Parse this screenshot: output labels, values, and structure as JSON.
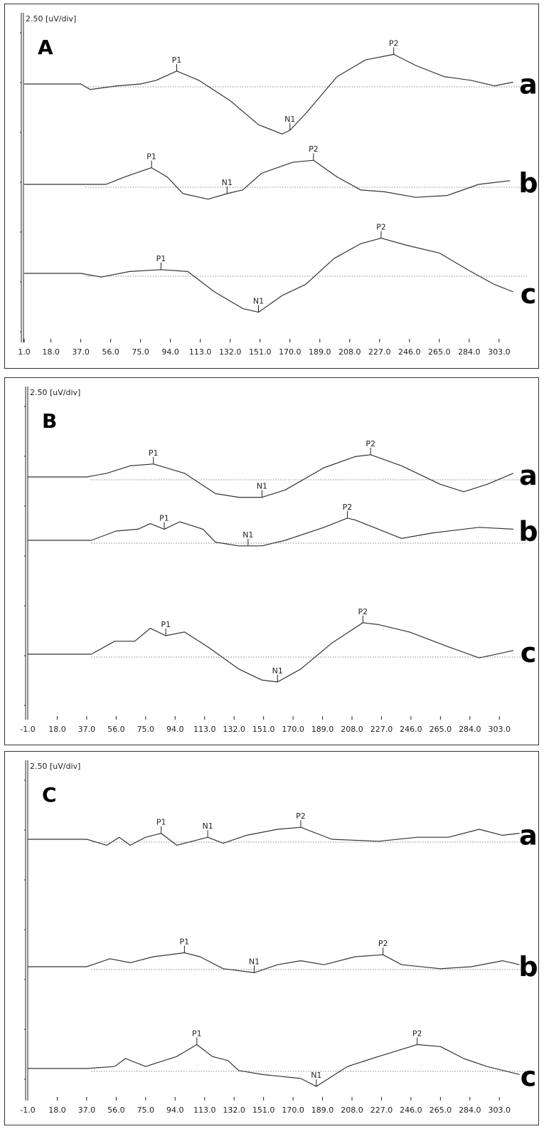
{
  "chart_data": [
    {
      "type": "line",
      "panel_label": "A",
      "scale_label": "2.50 [uV/div]",
      "x_ticks": [
        "1.0",
        "18.0",
        "37.0",
        "56.0",
        "75.0",
        "94.0",
        "113.0",
        "132.0",
        "151.0",
        "170.0",
        "189.0",
        "208.0",
        "227.0",
        "246.0",
        "265.0",
        "284.0",
        "303.0"
      ],
      "xlim": [
        1,
        318
      ],
      "y_unit_per_div": 2.5,
      "series": [
        {
          "name": "a",
          "baseline_div": 0,
          "points": [
            [
              1,
              0
            ],
            [
              37,
              0
            ],
            [
              43,
              -0.15
            ],
            [
              60,
              -0.05
            ],
            [
              75,
              0
            ],
            [
              85,
              0.1
            ],
            [
              98,
              0.35
            ],
            [
              112,
              0.1
            ],
            [
              132,
              -0.45
            ],
            [
              150,
              -1.1
            ],
            [
              165,
              -1.35
            ],
            [
              170,
              -1.25
            ],
            [
              180,
              -0.8
            ],
            [
              200,
              0.2
            ],
            [
              218,
              0.65
            ],
            [
              236,
              0.8
            ],
            [
              250,
              0.5
            ],
            [
              268,
              0.2
            ],
            [
              285,
              0.1
            ],
            [
              300,
              -0.05
            ],
            [
              312,
              0.05
            ]
          ],
          "peaks": [
            {
              "label": "P1",
              "x": 98,
              "y": 0.35
            },
            {
              "label": "N1",
              "x": 170,
              "y": -1.25
            },
            {
              "label": "P2",
              "x": 236,
              "y": 0.8
            }
          ]
        },
        {
          "name": "b",
          "baseline_div": -2.6,
          "points": [
            [
              1,
              0
            ],
            [
              53,
              0
            ],
            [
              65,
              0.2
            ],
            [
              75,
              0.35
            ],
            [
              82,
              0.45
            ],
            [
              92,
              0.2
            ],
            [
              102,
              -0.25
            ],
            [
              118,
              -0.4
            ],
            [
              130,
              -0.25
            ],
            [
              140,
              -0.15
            ],
            [
              152,
              0.3
            ],
            [
              172,
              0.6
            ],
            [
              185,
              0.65
            ],
            [
              200,
              0.2
            ],
            [
              215,
              -0.15
            ],
            [
              230,
              -0.2
            ],
            [
              250,
              -0.35
            ],
            [
              270,
              -0.3
            ],
            [
              290,
              0
            ],
            [
              310,
              0.1
            ]
          ],
          "peaks": [
            {
              "label": "P1",
              "x": 82,
              "y": 0.45
            },
            {
              "label": "N1",
              "x": 130,
              "y": -0.25
            },
            {
              "label": "P2",
              "x": 185,
              "y": 0.65
            }
          ]
        },
        {
          "name": "c",
          "baseline_div": -4.95,
          "points": [
            [
              1,
              0
            ],
            [
              37,
              0
            ],
            [
              50,
              -0.1
            ],
            [
              68,
              0.05
            ],
            [
              88,
              0.1
            ],
            [
              105,
              0.05
            ],
            [
              122,
              -0.5
            ],
            [
              140,
              -0.95
            ],
            [
              150,
              -1.05
            ],
            [
              165,
              -0.6
            ],
            [
              180,
              -0.3
            ],
            [
              198,
              0.4
            ],
            [
              215,
              0.8
            ],
            [
              228,
              0.95
            ],
            [
              245,
              0.75
            ],
            [
              265,
              0.55
            ],
            [
              285,
              0.05
            ],
            [
              300,
              -0.3
            ],
            [
              312,
              -0.5
            ]
          ],
          "peaks": [
            {
              "label": "P1",
              "x": 88,
              "y": 0.1
            },
            {
              "label": "N1",
              "x": 150,
              "y": -1.05
            },
            {
              "label": "P2",
              "x": 228,
              "y": 0.95
            }
          ]
        }
      ]
    },
    {
      "type": "line",
      "panel_label": "B",
      "scale_label": "2.50 [uV/div]",
      "x_ticks": [
        "-1.0",
        "18.0",
        "37.0",
        "56.0",
        "75.0",
        "94.0",
        "113.0",
        "132.0",
        "151.0",
        "170.0",
        "189.0",
        "208.0",
        "227.0",
        "246.0",
        "265.0",
        "284.0",
        "303.0"
      ],
      "xlim": [
        -1,
        318
      ],
      "y_unit_per_div": 2.5,
      "series": [
        {
          "name": "a",
          "baseline_div": 0,
          "points": [
            [
              -1,
              0
            ],
            [
              37,
              0
            ],
            [
              50,
              0.1
            ],
            [
              65,
              0.3
            ],
            [
              80,
              0.35
            ],
            [
              100,
              0.1
            ],
            [
              120,
              -0.45
            ],
            [
              135,
              -0.55
            ],
            [
              150,
              -0.55
            ],
            [
              165,
              -0.35
            ],
            [
              190,
              0.25
            ],
            [
              210,
              0.55
            ],
            [
              220,
              0.6
            ],
            [
              240,
              0.3
            ],
            [
              265,
              -0.2
            ],
            [
              280,
              -0.4
            ],
            [
              295,
              -0.2
            ],
            [
              312,
              0.1
            ]
          ],
          "peaks": [
            {
              "label": "P1",
              "x": 80,
              "y": 0.35
            },
            {
              "label": "N1",
              "x": 150,
              "y": -0.55
            },
            {
              "label": "P2",
              "x": 220,
              "y": 0.6
            }
          ]
        },
        {
          "name": "b",
          "baseline_div": -2.5,
          "points": [
            [
              -1,
              0
            ],
            [
              40,
              0
            ],
            [
              56,
              0.25
            ],
            [
              70,
              0.3
            ],
            [
              78,
              0.45
            ],
            [
              87,
              0.3
            ],
            [
              97,
              0.5
            ],
            [
              112,
              0.3
            ],
            [
              120,
              -0.05
            ],
            [
              135,
              -0.15
            ],
            [
              150,
              -0.15
            ],
            [
              165,
              0
            ],
            [
              190,
              0.35
            ],
            [
              205,
              0.6
            ],
            [
              210,
              0.55
            ],
            [
              225,
              0.3
            ],
            [
              240,
              0.05
            ],
            [
              260,
              0.2
            ],
            [
              290,
              0.35
            ],
            [
              312,
              0.3
            ]
          ],
          "peaks": [
            {
              "label": "P1",
              "x": 87,
              "y": 0.3
            },
            {
              "label": "N1",
              "x": 141,
              "y": -0.15
            },
            {
              "label": "P2",
              "x": 205,
              "y": 0.6
            }
          ]
        },
        {
          "name": "c",
          "baseline_div": -5.0,
          "points": [
            [
              -1,
              0
            ],
            [
              40,
              0
            ],
            [
              55,
              0.35
            ],
            [
              68,
              0.35
            ],
            [
              78,
              0.7
            ],
            [
              88,
              0.5
            ],
            [
              100,
              0.6
            ],
            [
              115,
              0.2
            ],
            [
              135,
              -0.4
            ],
            [
              150,
              -0.7
            ],
            [
              160,
              -0.75
            ],
            [
              175,
              -0.4
            ],
            [
              195,
              0.3
            ],
            [
              215,
              0.85
            ],
            [
              225,
              0.8
            ],
            [
              245,
              0.6
            ],
            [
              270,
              0.2
            ],
            [
              290,
              -0.1
            ],
            [
              312,
              0.1
            ]
          ],
          "peaks": [
            {
              "label": "P1",
              "x": 88,
              "y": 0.5
            },
            {
              "label": "N1",
              "x": 160,
              "y": -0.75
            },
            {
              "label": "P2",
              "x": 215,
              "y": 0.85
            }
          ]
        }
      ]
    },
    {
      "type": "line",
      "panel_label": "C",
      "scale_label": "2.50 [uV/div]",
      "x_ticks": [
        "-1.0",
        "18.0",
        "37.0",
        "56.0",
        "75.0",
        "94.0",
        "113.0",
        "132.0",
        "151.0",
        "170.0",
        "189.0",
        "208.0",
        "227.0",
        "246.0",
        "265.0",
        "284.0",
        "303.0"
      ],
      "xlim": [
        -1,
        318
      ],
      "y_unit_per_div": 2.5,
      "series": [
        {
          "name": "a",
          "baseline_div": 0,
          "points": [
            [
              -1,
              0
            ],
            [
              37,
              0
            ],
            [
              50,
              -0.15
            ],
            [
              58,
              0.05
            ],
            [
              65,
              -0.15
            ],
            [
              75,
              0.05
            ],
            [
              85,
              0.15
            ],
            [
              95,
              -0.15
            ],
            [
              105,
              -0.05
            ],
            [
              115,
              0.05
            ],
            [
              125,
              -0.1
            ],
            [
              140,
              0.1
            ],
            [
              160,
              0.25
            ],
            [
              175,
              0.3
            ],
            [
              195,
              0
            ],
            [
              225,
              -0.05
            ],
            [
              250,
              0.05
            ],
            [
              270,
              0.05
            ],
            [
              290,
              0.25
            ],
            [
              305,
              0.1
            ],
            [
              316,
              0.15
            ]
          ],
          "peaks": [
            {
              "label": "P1",
              "x": 85,
              "y": 0.15
            },
            {
              "label": "N1",
              "x": 115,
              "y": 0.05
            },
            {
              "label": "P2",
              "x": 175,
              "y": 0.3
            }
          ]
        },
        {
          "name": "b",
          "baseline_div": -2.6,
          "points": [
            [
              -1,
              0
            ],
            [
              37,
              0
            ],
            [
              52,
              0.2
            ],
            [
              65,
              0.1
            ],
            [
              80,
              0.25
            ],
            [
              100,
              0.35
            ],
            [
              110,
              0.25
            ],
            [
              125,
              -0.05
            ],
            [
              145,
              -0.15
            ],
            [
              160,
              0.05
            ],
            [
              175,
              0.15
            ],
            [
              190,
              0.05
            ],
            [
              210,
              0.25
            ],
            [
              228,
              0.3
            ],
            [
              240,
              0.05
            ],
            [
              265,
              -0.05
            ],
            [
              285,
              0
            ],
            [
              305,
              0.15
            ],
            [
              316,
              0.05
            ]
          ],
          "peaks": [
            {
              "label": "P1",
              "x": 100,
              "y": 0.35
            },
            {
              "label": "N1",
              "x": 145,
              "y": -0.15
            },
            {
              "label": "P2",
              "x": 228,
              "y": 0.3
            }
          ]
        },
        {
          "name": "c",
          "baseline_div": -5.0,
          "points": [
            [
              -1,
              0
            ],
            [
              37,
              0
            ],
            [
              55,
              0.05
            ],
            [
              62,
              0.25
            ],
            [
              75,
              0.05
            ],
            [
              95,
              0.3
            ],
            [
              108,
              0.6
            ],
            [
              118,
              0.3
            ],
            [
              128,
              0.2
            ],
            [
              135,
              -0.05
            ],
            [
              150,
              -0.15
            ],
            [
              175,
              -0.25
            ],
            [
              185,
              -0.45
            ],
            [
              205,
              0.05
            ],
            [
              225,
              0.3
            ],
            [
              250,
              0.6
            ],
            [
              265,
              0.55
            ],
            [
              280,
              0.25
            ],
            [
              295,
              0.05
            ],
            [
              316,
              -0.15
            ]
          ],
          "peaks": [
            {
              "label": "P1",
              "x": 108,
              "y": 0.6
            },
            {
              "label": "N1",
              "x": 185,
              "y": -0.45
            },
            {
              "label": "P2",
              "x": 250,
              "y": 0.6
            }
          ]
        }
      ]
    }
  ]
}
